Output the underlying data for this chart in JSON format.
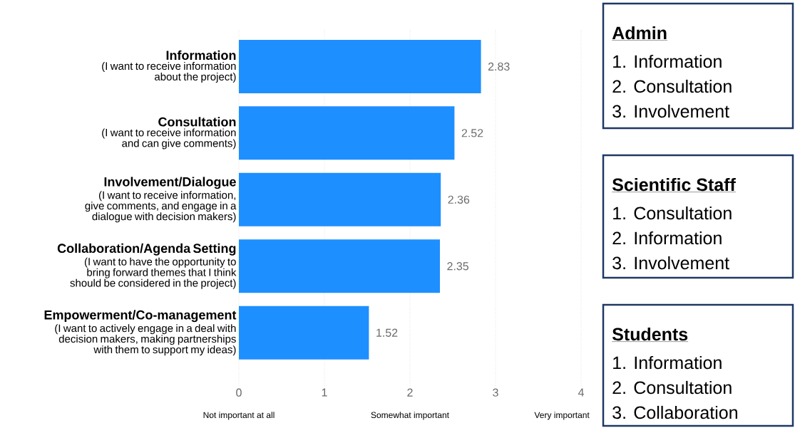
{
  "chart_data": {
    "type": "bar",
    "orientation": "horizontal",
    "categories": [
      "Information",
      "Consultation",
      "Involvement/Dialogue",
      "Collaboration/Agenda Setting",
      "Empowerment/Co-management"
    ],
    "values": [
      2.83,
      2.52,
      2.36,
      2.35,
      1.52
    ],
    "color": "#1e8fff",
    "xlim": [
      0,
      4
    ],
    "xticks": [
      0,
      1,
      2,
      3,
      4
    ],
    "grid": "x",
    "data_labels": true,
    "annotations": [
      "(I want to receive information about the project)",
      "(I want to receive information and can give comments)",
      "(I want to receive information, give comments, and engage in a dialogue with decision makers)",
      "(I want to have the opportunity to bring forward themes that I think should be considered in the project)",
      "(I want to actively engage in a deal with decision makers, making partnerships with them to support my ideas)",
      "Not important at all",
      "Somewhat important",
      "Very important",
      "Admin",
      "1.  Information",
      "2.  Consultation",
      "3.  Involvement",
      "Scientific Staff",
      "1.  Consultation",
      "2.  Information",
      "3.  Involvement",
      "Students",
      "1.  Information",
      "2.  Consultation",
      "3.  Collaboration"
    ]
  }
}
